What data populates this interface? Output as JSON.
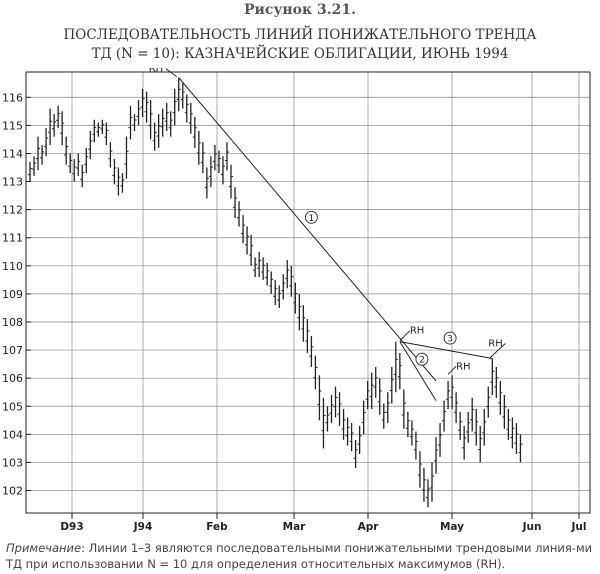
{
  "figure": {
    "label": "Рисунок 3.21.",
    "title_line1": "ПОСЛЕДОВАТЕЛЬНОСТЬ ЛИНИЙ ПОНИЖАТЕЛЬНОГО ТРЕНДА",
    "title_line2": "ТД (N = 10): КАЗНАЧЕЙСКИЕ ОБЛИГАЦИИ, ИЮНЬ 1994",
    "note_label": "Примечание",
    "note_text": ": Линии 1–3 являются последовательными понижательными трендовыми линия-ми ТД при использовании N = 10 для определения относительных максимумов (RH)."
  },
  "chart_data": {
    "type": "ohlc",
    "x_axis_labels": [
      "D93",
      "J94",
      "Feb",
      "Mar",
      "Apr",
      "May",
      "Jun",
      "Jul"
    ],
    "y_ticks": [
      102,
      103,
      104,
      105,
      106,
      107,
      108,
      109,
      110,
      111,
      112,
      113,
      114,
      115,
      116
    ],
    "ylim": [
      101.2,
      116.9
    ],
    "grid": true,
    "bar_color": "#222222",
    "price_bars": [
      {
        "h": 113.7,
        "l": 113.0
      },
      {
        "h": 113.9,
        "l": 113.2
      },
      {
        "h": 114.6,
        "l": 113.4
      },
      {
        "h": 114.3,
        "l": 113.6
      },
      {
        "h": 114.9,
        "l": 113.9
      },
      {
        "h": 115.6,
        "l": 114.3
      },
      {
        "h": 115.4,
        "l": 114.6
      },
      {
        "h": 115.7,
        "l": 114.9
      },
      {
        "h": 115.5,
        "l": 114.3
      },
      {
        "h": 114.6,
        "l": 113.6
      },
      {
        "h": 114.0,
        "l": 113.3
      },
      {
        "h": 113.8,
        "l": 113.0
      },
      {
        "h": 114.0,
        "l": 113.2
      },
      {
        "h": 113.6,
        "l": 112.8
      },
      {
        "h": 114.2,
        "l": 113.3
      },
      {
        "h": 114.8,
        "l": 113.8
      },
      {
        "h": 115.2,
        "l": 114.4
      },
      {
        "h": 115.1,
        "l": 114.6
      },
      {
        "h": 115.2,
        "l": 114.7
      },
      {
        "h": 115.1,
        "l": 114.3
      },
      {
        "h": 114.4,
        "l": 113.5
      },
      {
        "h": 113.8,
        "l": 112.9
      },
      {
        "h": 113.5,
        "l": 112.5
      },
      {
        "h": 113.3,
        "l": 112.6
      },
      {
        "h": 114.6,
        "l": 113.1
      },
      {
        "h": 115.7,
        "l": 114.5
      },
      {
        "h": 115.4,
        "l": 114.8
      },
      {
        "h": 115.9,
        "l": 115.0
      },
      {
        "h": 116.3,
        "l": 115.3
      },
      {
        "h": 116.2,
        "l": 115.1
      },
      {
        "h": 115.9,
        "l": 114.5
      },
      {
        "h": 115.1,
        "l": 114.1
      },
      {
        "h": 115.4,
        "l": 114.2
      },
      {
        "h": 115.6,
        "l": 114.6
      },
      {
        "h": 115.8,
        "l": 114.8
      },
      {
        "h": 115.5,
        "l": 114.6
      },
      {
        "h": 116.3,
        "l": 115.0
      },
      {
        "h": 116.7,
        "l": 115.5
      },
      {
        "h": 116.5,
        "l": 115.6
      },
      {
        "h": 116.1,
        "l": 115.1
      },
      {
        "h": 115.8,
        "l": 114.7
      },
      {
        "h": 115.3,
        "l": 114.2
      },
      {
        "h": 114.8,
        "l": 113.6
      },
      {
        "h": 114.4,
        "l": 113.3
      },
      {
        "h": 113.5,
        "l": 112.4
      },
      {
        "h": 113.9,
        "l": 112.8
      },
      {
        "h": 114.3,
        "l": 113.4
      },
      {
        "h": 114.1,
        "l": 113.3
      },
      {
        "h": 113.9,
        "l": 112.9
      },
      {
        "h": 114.4,
        "l": 113.4
      },
      {
        "h": 113.6,
        "l": 112.4
      },
      {
        "h": 112.8,
        "l": 111.7
      },
      {
        "h": 112.3,
        "l": 111.4
      },
      {
        "h": 111.8,
        "l": 110.8
      },
      {
        "h": 111.4,
        "l": 110.4
      },
      {
        "h": 111.1,
        "l": 110.0
      },
      {
        "h": 110.3,
        "l": 109.6
      },
      {
        "h": 110.5,
        "l": 109.6
      },
      {
        "h": 110.3,
        "l": 109.5
      },
      {
        "h": 110.1,
        "l": 109.3
      },
      {
        "h": 109.8,
        "l": 109.0
      },
      {
        "h": 109.5,
        "l": 108.6
      },
      {
        "h": 109.3,
        "l": 108.5
      },
      {
        "h": 109.7,
        "l": 108.8
      },
      {
        "h": 110.2,
        "l": 109.2
      },
      {
        "h": 110.0,
        "l": 108.9
      },
      {
        "h": 109.4,
        "l": 108.3
      },
      {
        "h": 109.0,
        "l": 107.7
      },
      {
        "h": 108.6,
        "l": 107.3
      },
      {
        "h": 108.1,
        "l": 106.9
      },
      {
        "h": 107.5,
        "l": 106.4
      },
      {
        "h": 106.8,
        "l": 105.6
      },
      {
        "h": 106.1,
        "l": 104.5
      },
      {
        "h": 105.3,
        "l": 103.5
      },
      {
        "h": 105.0,
        "l": 104.1
      },
      {
        "h": 105.4,
        "l": 104.4
      },
      {
        "h": 105.7,
        "l": 104.6
      },
      {
        "h": 105.5,
        "l": 104.3
      },
      {
        "h": 104.9,
        "l": 103.8
      },
      {
        "h": 104.6,
        "l": 103.6
      },
      {
        "h": 104.4,
        "l": 103.4
      },
      {
        "h": 103.8,
        "l": 102.8
      },
      {
        "h": 104.3,
        "l": 103.3
      },
      {
        "h": 105.2,
        "l": 104.0
      },
      {
        "h": 105.9,
        "l": 104.9
      },
      {
        "h": 106.2,
        "l": 104.9
      },
      {
        "h": 106.4,
        "l": 105.3
      },
      {
        "h": 106.0,
        "l": 104.7
      },
      {
        "h": 105.1,
        "l": 104.2
      },
      {
        "h": 105.5,
        "l": 104.4
      },
      {
        "h": 106.4,
        "l": 105.1
      },
      {
        "h": 107.3,
        "l": 105.5
      },
      {
        "h": 106.9,
        "l": 105.6
      },
      {
        "h": 105.6,
        "l": 104.2
      },
      {
        "h": 104.8,
        "l": 103.9
      },
      {
        "h": 104.5,
        "l": 103.6
      },
      {
        "h": 104.1,
        "l": 103.1
      },
      {
        "h": 103.4,
        "l": 102.1
      },
      {
        "h": 102.8,
        "l": 101.6
      },
      {
        "h": 102.4,
        "l": 101.4
      },
      {
        "h": 103.0,
        "l": 101.6
      },
      {
        "h": 103.9,
        "l": 102.6
      },
      {
        "h": 104.4,
        "l": 103.2
      },
      {
        "h": 105.2,
        "l": 104.1
      },
      {
        "h": 105.9,
        "l": 104.9
      },
      {
        "h": 106.1,
        "l": 104.9
      },
      {
        "h": 105.5,
        "l": 104.4
      },
      {
        "h": 104.8,
        "l": 103.8
      },
      {
        "h": 104.3,
        "l": 103.1
      },
      {
        "h": 104.8,
        "l": 103.7
      },
      {
        "h": 105.3,
        "l": 104.1
      },
      {
        "h": 104.9,
        "l": 103.6
      },
      {
        "h": 104.3,
        "l": 103.0
      },
      {
        "h": 104.9,
        "l": 103.6
      },
      {
        "h": 105.7,
        "l": 104.6
      },
      {
        "h": 106.7,
        "l": 105.4
      },
      {
        "h": 106.4,
        "l": 105.3
      },
      {
        "h": 105.9,
        "l": 104.7
      },
      {
        "h": 105.4,
        "l": 104.2
      },
      {
        "h": 104.9,
        "l": 103.8
      },
      {
        "h": 104.6,
        "l": 103.5
      },
      {
        "h": 104.4,
        "l": 103.3
      },
      {
        "h": 104.0,
        "l": 103.0
      }
    ],
    "trend_lines": [
      {
        "label": "1",
        "from": {
          "bar": 37,
          "price": 116.7
        },
        "to": {
          "bar": 101,
          "price": 105.9
        }
      },
      {
        "label": "2",
        "from": {
          "bar": 92,
          "price": 107.3
        },
        "to": {
          "bar": 101,
          "price": 105.2
        }
      },
      {
        "label": "3",
        "from": {
          "bar": 92,
          "price": 107.3
        },
        "to": {
          "bar": 115,
          "price": 106.7
        }
      }
    ],
    "annotations": [
      {
        "text": "RH",
        "bar": 37,
        "price": 116.7
      },
      {
        "text": "RH",
        "bar": 92,
        "price": 107.3
      },
      {
        "text": "RH",
        "bar": 104,
        "price": 106.1
      },
      {
        "text": "RH",
        "bar": 115,
        "price": 106.7
      }
    ]
  }
}
